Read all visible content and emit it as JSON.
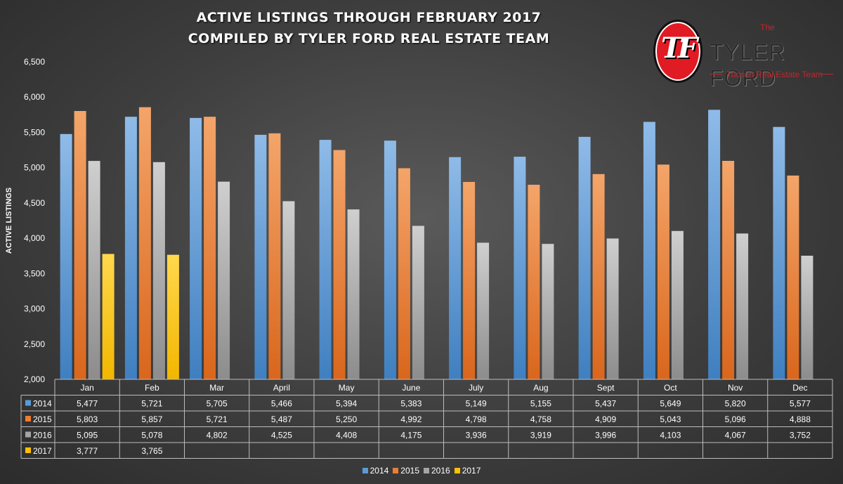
{
  "title_line1": "ACTIVE LISTINGS THROUGH FEBRUARY 2017",
  "title_line2": "COMPILED BY TYLER FORD REAL ESTATE TEAM",
  "logo": {
    "monogram": "TF",
    "the": "The",
    "name": "TYLER FORD",
    "tagline": "Tucson Real Estate Team"
  },
  "chart_data": {
    "type": "bar",
    "title": "ACTIVE LISTINGS THROUGH FEBRUARY 2017",
    "subtitle": "COMPILED BY TYLER FORD REAL ESTATE TEAM",
    "ylabel": "ACTIVE LISTINGS",
    "xlabel": "",
    "ylim": [
      2000,
      6500
    ],
    "yticks": [
      "2,000",
      "2,500",
      "3,000",
      "3,500",
      "4,000",
      "4,500",
      "5,000",
      "5,500",
      "6,000",
      "6,500"
    ],
    "ytick_values": [
      2000,
      2500,
      3000,
      3500,
      4000,
      4500,
      5000,
      5500,
      6000,
      6500
    ],
    "grid": false,
    "legend": "bottom",
    "categories": [
      "Jan",
      "Feb",
      "Mar",
      "April",
      "May",
      "June",
      "July",
      "Aug",
      "Sept",
      "Oct",
      "Nov",
      "Dec"
    ],
    "series": [
      {
        "name": "2014",
        "color": "#5b9bd5",
        "values": [
          5477,
          5721,
          5705,
          5466,
          5394,
          5383,
          5149,
          5155,
          5437,
          5649,
          5820,
          5577
        ],
        "labels": [
          "5,477",
          "5,721",
          "5,705",
          "5,466",
          "5,394",
          "5,383",
          "5,149",
          "5,155",
          "5,437",
          "5,649",
          "5,820",
          "5,577"
        ]
      },
      {
        "name": "2015",
        "color": "#ed7d31",
        "values": [
          5803,
          5857,
          5721,
          5487,
          5250,
          4992,
          4798,
          4758,
          4909,
          5043,
          5096,
          4888
        ],
        "labels": [
          "5,803",
          "5,857",
          "5,721",
          "5,487",
          "5,250",
          "4,992",
          "4,798",
          "4,758",
          "4,909",
          "5,043",
          "5,096",
          "4,888"
        ]
      },
      {
        "name": "2016",
        "color": "#a5a5a5",
        "values": [
          5095,
          5078,
          4802,
          4525,
          4408,
          4175,
          3936,
          3919,
          3996,
          4103,
          4067,
          3752
        ],
        "labels": [
          "5,095",
          "5,078",
          "4,802",
          "4,525",
          "4,408",
          "4,175",
          "3,936",
          "3,919",
          "3,996",
          "4,103",
          "4,067",
          "3,752"
        ]
      },
      {
        "name": "2017",
        "color": "#ffc000",
        "values": [
          3777,
          3765,
          null,
          null,
          null,
          null,
          null,
          null,
          null,
          null,
          null,
          null
        ],
        "labels": [
          "3,777",
          "3,765",
          "",
          "",
          "",
          "",
          "",
          "",
          "",
          "",
          "",
          ""
        ]
      }
    ]
  }
}
